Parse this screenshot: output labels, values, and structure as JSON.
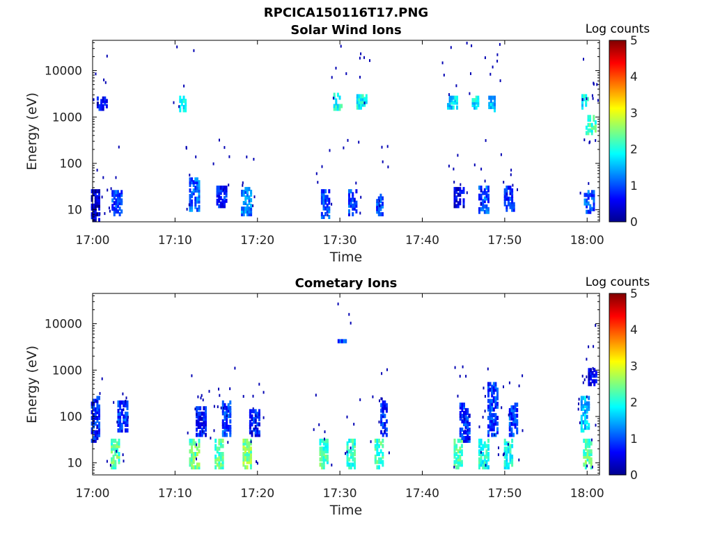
{
  "figure": {
    "title": "RPCICA150116T17.PNG"
  },
  "chart_data": [
    {
      "type": "heatmap",
      "title": "Solar Wind Ions",
      "xlabel": "Time",
      "ylabel": "Energy (eV)",
      "x_ticks": [
        "17:00",
        "17:10",
        "17:20",
        "17:30",
        "17:40",
        "17:50",
        "18:00"
      ],
      "x_tick_minutes": [
        0,
        10,
        20,
        30,
        40,
        50,
        60
      ],
      "xlim_minutes": [
        0,
        61.5
      ],
      "y_scale": "log",
      "y_ticks": [
        "10",
        "100",
        "1000",
        "10000"
      ],
      "y_tick_values": [
        10,
        100,
        1000,
        10000
      ],
      "ylim": [
        5.5,
        45000
      ],
      "colorbar": {
        "label": "Log counts",
        "range": [
          0,
          5
        ],
        "ticks": [
          "0",
          "1",
          "2",
          "3",
          "4",
          "5"
        ],
        "colormap": "jet"
      },
      "clusters": [
        {
          "t": 0.3,
          "e_min": 6,
          "e_max": 25,
          "level": 0.4
        },
        {
          "t": 1.0,
          "e_min": 1500,
          "e_max": 2500,
          "level": 0.6
        },
        {
          "t": 2.8,
          "e_min": 8,
          "e_max": 24,
          "level": 0.9
        },
        {
          "t": 11.0,
          "e_min": 1400,
          "e_max": 2600,
          "level": 1.8
        },
        {
          "t": 12.2,
          "e_min": 10,
          "e_max": 45,
          "level": 1.1
        },
        {
          "t": 15.5,
          "e_min": 12,
          "e_max": 30,
          "level": 0.8
        },
        {
          "t": 18.5,
          "e_min": 8,
          "e_max": 28,
          "level": 1.2
        },
        {
          "t": 28.2,
          "e_min": 7,
          "e_max": 25,
          "level": 1.0
        },
        {
          "t": 29.7,
          "e_min": 1500,
          "e_max": 3000,
          "level": 2.0
        },
        {
          "t": 31.5,
          "e_min": 8,
          "e_max": 25,
          "level": 0.9
        },
        {
          "t": 32.5,
          "e_min": 1600,
          "e_max": 2800,
          "level": 1.9
        },
        {
          "t": 34.9,
          "e_min": 8,
          "e_max": 20,
          "level": 1.0
        },
        {
          "t": 43.5,
          "e_min": 1600,
          "e_max": 2600,
          "level": 1.7
        },
        {
          "t": 44.3,
          "e_min": 12,
          "e_max": 28,
          "level": 0.5
        },
        {
          "t": 46.5,
          "e_min": 1600,
          "e_max": 2600,
          "level": 1.8
        },
        {
          "t": 47.3,
          "e_min": 9,
          "e_max": 30,
          "level": 1.0
        },
        {
          "t": 48.5,
          "e_min": 1400,
          "e_max": 2600,
          "level": 1.6
        },
        {
          "t": 50.4,
          "e_min": 10,
          "e_max": 30,
          "level": 0.8
        },
        {
          "t": 59.8,
          "e_min": 1600,
          "e_max": 2800,
          "level": 1.9
        },
        {
          "t": 60.3,
          "e_min": 450,
          "e_max": 1000,
          "level": 2.2
        },
        {
          "t": 60.1,
          "e_min": 9,
          "e_max": 24,
          "level": 1.0
        }
      ]
    },
    {
      "type": "heatmap",
      "title": "Cometary Ions",
      "xlabel": "Time",
      "ylabel": "Energy (eV)",
      "x_ticks": [
        "17:00",
        "17:10",
        "17:20",
        "17:30",
        "17:40",
        "17:50",
        "18:00"
      ],
      "x_tick_minutes": [
        0,
        10,
        20,
        30,
        40,
        50,
        60
      ],
      "xlim_minutes": [
        0,
        61.5
      ],
      "y_scale": "log",
      "y_ticks": [
        "10",
        "100",
        "1000",
        "10000"
      ],
      "y_tick_values": [
        10,
        100,
        1000,
        10000
      ],
      "ylim": [
        5.5,
        45000
      ],
      "colorbar": {
        "label": "Log counts",
        "range": [
          0,
          5
        ],
        "ticks": [
          "0",
          "1",
          "2",
          "3",
          "4",
          "5"
        ],
        "colormap": "jet"
      },
      "clusters": [
        {
          "t": 0.3,
          "e_min": 30,
          "e_max": 250,
          "level": 0.8
        },
        {
          "t": 2.7,
          "e_min": 8,
          "e_max": 30,
          "level": 2.3
        },
        {
          "t": 3.5,
          "e_min": 50,
          "e_max": 200,
          "level": 0.9
        },
        {
          "t": 12.2,
          "e_min": 8,
          "e_max": 30,
          "level": 2.4
        },
        {
          "t": 13.0,
          "e_min": 40,
          "e_max": 150,
          "level": 0.7
        },
        {
          "t": 15.3,
          "e_min": 8,
          "e_max": 30,
          "level": 2.3
        },
        {
          "t": 16.2,
          "e_min": 40,
          "e_max": 200,
          "level": 0.9
        },
        {
          "t": 18.7,
          "e_min": 8,
          "e_max": 30,
          "level": 2.5
        },
        {
          "t": 19.5,
          "e_min": 40,
          "e_max": 130,
          "level": 0.7
        },
        {
          "t": 28.0,
          "e_min": 8,
          "e_max": 30,
          "level": 2.2
        },
        {
          "t": 30.0,
          "e_min": 4200,
          "e_max": 4200,
          "level": 1.0
        },
        {
          "t": 31.3,
          "e_min": 8,
          "e_max": 30,
          "level": 2.1
        },
        {
          "t": 34.7,
          "e_min": 8,
          "e_max": 30,
          "level": 2.2
        },
        {
          "t": 35.4,
          "e_min": 40,
          "e_max": 200,
          "level": 0.8
        },
        {
          "t": 44.3,
          "e_min": 8,
          "e_max": 30,
          "level": 2.2
        },
        {
          "t": 45.0,
          "e_min": 30,
          "e_max": 180,
          "level": 0.8
        },
        {
          "t": 47.3,
          "e_min": 8,
          "e_max": 30,
          "level": 2.0
        },
        {
          "t": 48.4,
          "e_min": 40,
          "e_max": 500,
          "level": 0.9
        },
        {
          "t": 50.4,
          "e_min": 8,
          "e_max": 30,
          "level": 2.0
        },
        {
          "t": 51.0,
          "e_min": 40,
          "e_max": 180,
          "level": 0.9
        },
        {
          "t": 59.7,
          "e_min": 50,
          "e_max": 250,
          "level": 1.6
        },
        {
          "t": 60.0,
          "e_min": 8,
          "e_max": 30,
          "level": 2.3
        },
        {
          "t": 60.6,
          "e_min": 500,
          "e_max": 1000,
          "level": 0.6
        }
      ]
    }
  ]
}
